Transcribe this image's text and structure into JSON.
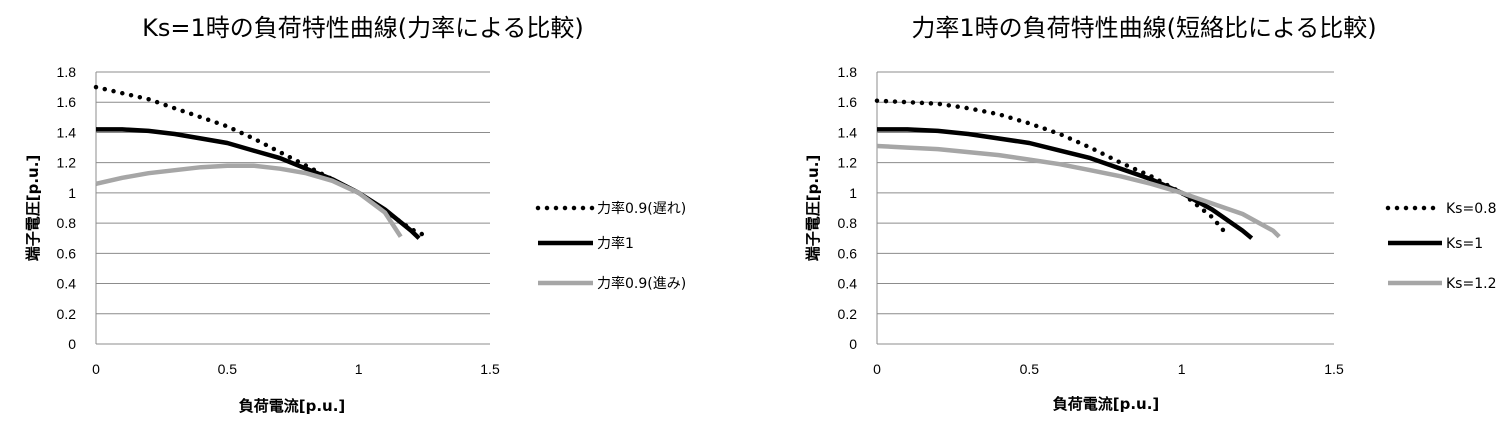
{
  "chart_data": [
    {
      "type": "line",
      "title": "Ks=1時の負荷特性曲線(力率による比較)",
      "xlabel": "負荷電流[p.u.]",
      "ylabel": "端子電圧[p.u.]",
      "xlim": [
        0,
        1.5
      ],
      "ylim": [
        0,
        1.8
      ],
      "x_ticks": [
        "0",
        "0.5",
        "1",
        "1.5"
      ],
      "y_ticks": [
        "0",
        "0.2",
        "0.4",
        "0.6",
        "0.8",
        "1",
        "1.2",
        "1.4",
        "1.6",
        "1.8"
      ],
      "grid": true,
      "legend_position": "right",
      "series": [
        {
          "name": "力率0.9(遅れ)",
          "style": "dotted",
          "color": "#000000",
          "x": [
            0,
            0.1,
            0.2,
            0.3,
            0.4,
            0.5,
            0.6,
            0.7,
            0.8,
            0.9,
            1.0,
            1.1,
            1.2,
            1.25
          ],
          "y": [
            1.7,
            1.66,
            1.62,
            1.56,
            1.5,
            1.44,
            1.36,
            1.27,
            1.18,
            1.09,
            1.0,
            0.88,
            0.76,
            0.72
          ]
        },
        {
          "name": "力率1",
          "style": "solid",
          "color": "#000000",
          "x": [
            0,
            0.1,
            0.2,
            0.3,
            0.4,
            0.5,
            0.6,
            0.7,
            0.8,
            0.9,
            1.0,
            1.1,
            1.2,
            1.23
          ],
          "y": [
            1.42,
            1.42,
            1.41,
            1.39,
            1.36,
            1.33,
            1.28,
            1.23,
            1.16,
            1.09,
            1.0,
            0.89,
            0.75,
            0.7
          ]
        },
        {
          "name": "力率0.9(進み)",
          "style": "solid",
          "color": "#a6a6a6",
          "x": [
            0,
            0.1,
            0.2,
            0.3,
            0.4,
            0.5,
            0.6,
            0.7,
            0.8,
            0.9,
            1.0,
            1.1,
            1.16
          ],
          "y": [
            1.06,
            1.1,
            1.13,
            1.15,
            1.17,
            1.18,
            1.18,
            1.16,
            1.13,
            1.08,
            1.0,
            0.87,
            0.71
          ]
        }
      ]
    },
    {
      "type": "line",
      "title": "力率1時の負荷特性曲線(短絡比による比較)",
      "xlabel": "負荷電流[p.u.]",
      "ylabel": "端子電圧[p.u.]",
      "xlim": [
        0,
        1.5
      ],
      "ylim": [
        0,
        1.8
      ],
      "x_ticks": [
        "0",
        "0.5",
        "1",
        "1.5"
      ],
      "y_ticks": [
        "0",
        "0.2",
        "0.4",
        "0.6",
        "0.8",
        "1",
        "1.2",
        "1.4",
        "1.6",
        "1.8"
      ],
      "grid": true,
      "legend_position": "right",
      "series": [
        {
          "name": "Ks=0.8",
          "style": "dotted",
          "color": "#000000",
          "x": [
            0,
            0.1,
            0.2,
            0.3,
            0.4,
            0.5,
            0.6,
            0.7,
            0.8,
            0.9,
            1.0,
            1.1,
            1.15
          ],
          "y": [
            1.61,
            1.6,
            1.59,
            1.56,
            1.52,
            1.46,
            1.39,
            1.3,
            1.2,
            1.11,
            1.0,
            0.84,
            0.72
          ]
        },
        {
          "name": "Ks=1",
          "style": "solid",
          "color": "#000000",
          "x": [
            0,
            0.1,
            0.2,
            0.3,
            0.4,
            0.5,
            0.6,
            0.7,
            0.8,
            0.9,
            1.0,
            1.1,
            1.2,
            1.23
          ],
          "y": [
            1.42,
            1.42,
            1.41,
            1.39,
            1.36,
            1.33,
            1.28,
            1.23,
            1.16,
            1.09,
            1.0,
            0.89,
            0.75,
            0.7
          ]
        },
        {
          "name": "Ks=1.2",
          "style": "solid",
          "color": "#a6a6a6",
          "x": [
            0,
            0.1,
            0.2,
            0.3,
            0.4,
            0.5,
            0.6,
            0.7,
            0.8,
            0.9,
            1.0,
            1.1,
            1.2,
            1.3,
            1.32
          ],
          "y": [
            1.31,
            1.3,
            1.29,
            1.27,
            1.25,
            1.22,
            1.19,
            1.15,
            1.11,
            1.06,
            1.0,
            0.93,
            0.86,
            0.75,
            0.71
          ]
        }
      ]
    }
  ]
}
